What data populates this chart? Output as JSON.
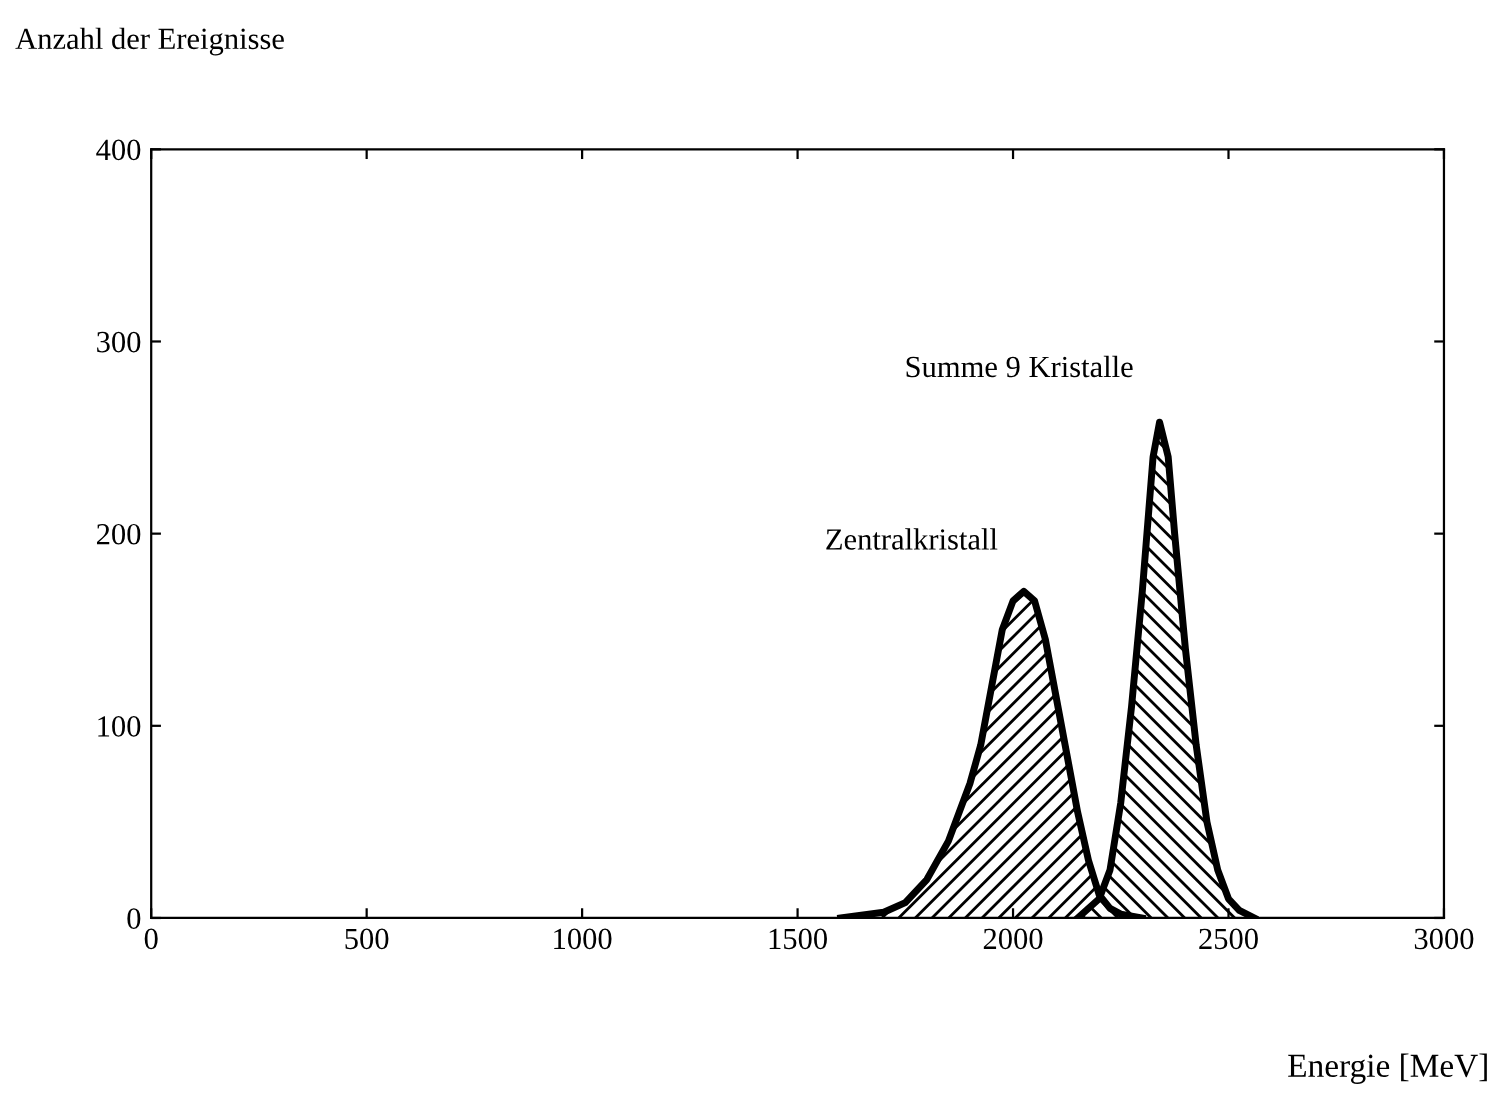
{
  "chart_data": {
    "type": "area",
    "ylabel": "Anzahl der Ereignisse",
    "xlabel": "Energie [MeV]",
    "xlim": [
      0,
      3000
    ],
    "xticks": [
      0,
      500,
      1000,
      1500,
      2000,
      2500,
      3000
    ],
    "ylim": [
      0,
      400
    ],
    "yticks": [
      0,
      100,
      200,
      300,
      400
    ],
    "grid": false,
    "series": [
      {
        "name": "Zentralkristall",
        "color": "#000000",
        "x": [
          1600,
          1700,
          1750,
          1800,
          1850,
          1900,
          1925,
          1950,
          1975,
          2000,
          2025,
          2050,
          2075,
          2100,
          2125,
          2150,
          2175,
          2200,
          2225,
          2250,
          2300
        ],
        "values": [
          0,
          3,
          8,
          20,
          40,
          70,
          90,
          120,
          150,
          165,
          170,
          165,
          145,
          115,
          85,
          55,
          30,
          12,
          5,
          2,
          0
        ]
      },
      {
        "name": "Summe 9 Kristalle",
        "color": "#000000",
        "x": [
          2150,
          2200,
          2225,
          2250,
          2275,
          2300,
          2325,
          2340,
          2360,
          2375,
          2400,
          2425,
          2450,
          2475,
          2500,
          2525,
          2560
        ],
        "values": [
          0,
          10,
          25,
          60,
          110,
          170,
          240,
          258,
          240,
          200,
          140,
          90,
          50,
          25,
          10,
          4,
          0
        ]
      }
    ]
  }
}
